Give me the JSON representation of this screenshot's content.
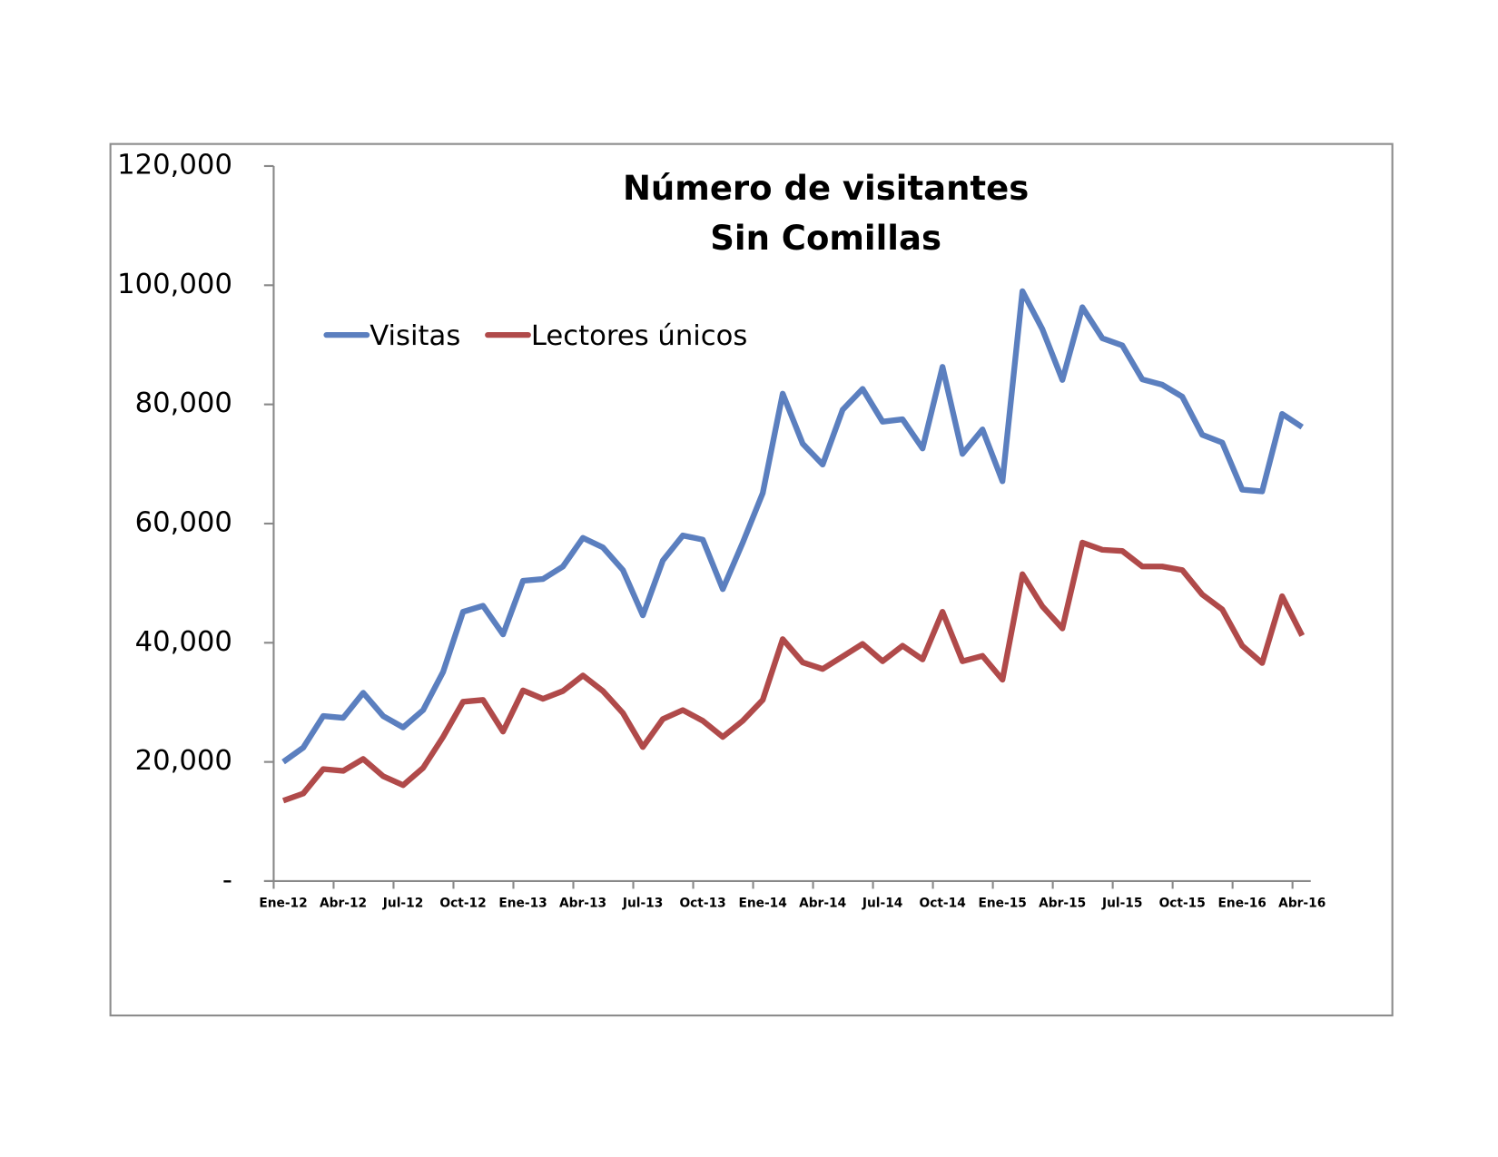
{
  "chart_data": {
    "type": "line",
    "title": [
      "Número de visitantes",
      "Sin Comillas"
    ],
    "categories": [
      "Ene-12",
      null,
      null,
      "Abr-12",
      null,
      null,
      "Jul-12",
      null,
      null,
      "Oct-12",
      null,
      null,
      "Ene-13",
      null,
      null,
      "Abr-13",
      null,
      null,
      "Jul-13",
      null,
      null,
      "Oct-13",
      null,
      null,
      "Ene-14",
      null,
      null,
      "Abr-14",
      null,
      null,
      "Jul-14",
      null,
      null,
      "Oct-14",
      null,
      null,
      "Ene-15",
      null,
      null,
      "Abr-15",
      null,
      null,
      "Jul-15",
      null,
      null,
      "Oct-15",
      null,
      null,
      "Ene-16",
      null,
      null,
      "Abr-16"
    ],
    "series": [
      {
        "name": "Visitas",
        "color": "#5b7fbf",
        "values": [
          20000,
          22400,
          27700,
          27400,
          31600,
          27700,
          25800,
          28700,
          35100,
          45200,
          46200,
          41400,
          50400,
          50700,
          52800,
          57600,
          56000,
          52200,
          44600,
          53800,
          58000,
          57300,
          49000,
          56800,
          65100,
          81800,
          73400,
          69900,
          79100,
          82600,
          77100,
          77500,
          72600,
          86300,
          71700,
          75800,
          67100,
          99000,
          92600,
          84100,
          96300,
          91100,
          89900,
          84200,
          83300,
          81300,
          74900,
          73600,
          65700,
          65400,
          78400,
          76200
        ]
      },
      {
        "name": "Lectores únicos",
        "color": "#b04a4a",
        "values": [
          13500,
          14700,
          18800,
          18500,
          20500,
          17600,
          16100,
          19000,
          24200,
          30100,
          30400,
          25100,
          32000,
          30600,
          31900,
          34500,
          31900,
          28200,
          22500,
          27200,
          28700,
          26900,
          24200,
          26900,
          30400,
          40600,
          36700,
          35600,
          37700,
          39800,
          36900,
          39500,
          37200,
          45200,
          36900,
          37800,
          33800,
          51500,
          46100,
          42400,
          56800,
          55600,
          55400,
          52800,
          52800,
          52200,
          48100,
          45600,
          39500,
          36600,
          47800,
          41200
        ]
      }
    ],
    "ylim": [
      0,
      120000
    ],
    "yticks": [
      {
        "value": 0,
        "label": "-"
      },
      {
        "value": 20000,
        "label": "20,000"
      },
      {
        "value": 40000,
        "label": "40,000"
      },
      {
        "value": 60000,
        "label": "60,000"
      },
      {
        "value": 80000,
        "label": "80,000"
      },
      {
        "value": 100000,
        "label": "100,000"
      },
      {
        "value": 120000,
        "label": "120,000"
      }
    ],
    "grid": false,
    "legend": "top-left"
  }
}
